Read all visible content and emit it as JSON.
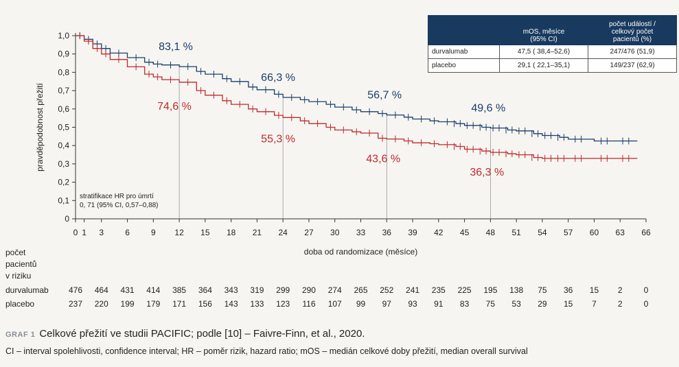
{
  "chart_data": {
    "type": "line",
    "subtype": "kaplan-meier",
    "xlabel": "doba od randomizace (měsíce)",
    "ylabel": "pravděpodobnost přežití",
    "xlim": [
      0,
      66
    ],
    "ylim": [
      0,
      1.0
    ],
    "xticks": [
      0,
      1,
      3,
      6,
      9,
      12,
      15,
      18,
      21,
      24,
      27,
      30,
      33,
      36,
      39,
      42,
      45,
      48,
      51,
      54,
      57,
      60,
      63,
      66
    ],
    "yticks": [
      "0",
      "0,1",
      "0,2",
      "0,3",
      "0,4",
      "0,5",
      "0,6",
      "0,7",
      "0,8",
      "0,9",
      "1,0"
    ],
    "grid": false,
    "colors": {
      "durvalumab": "#1b3d6b",
      "placebo": "#c0282d",
      "reference_line": "#999999"
    },
    "reference_months": [
      12,
      24,
      36,
      48
    ],
    "series": [
      {
        "name": "durvalumab",
        "x": [
          0,
          1,
          2,
          3,
          4,
          6,
          8,
          9,
          10,
          12,
          14,
          15,
          17,
          18,
          20,
          21,
          23,
          24,
          26,
          27,
          29,
          30,
          32,
          33,
          35,
          36,
          38,
          39,
          41,
          42,
          44,
          45,
          47,
          48,
          50,
          51,
          53,
          54,
          56,
          57,
          60,
          63,
          65
        ],
        "y": [
          1.0,
          0.98,
          0.955,
          0.93,
          0.905,
          0.88,
          0.855,
          0.845,
          0.84,
          0.831,
          0.805,
          0.79,
          0.765,
          0.75,
          0.72,
          0.705,
          0.68,
          0.663,
          0.65,
          0.64,
          0.625,
          0.61,
          0.595,
          0.585,
          0.575,
          0.567,
          0.555,
          0.545,
          0.535,
          0.53,
          0.52,
          0.51,
          0.5,
          0.496,
          0.485,
          0.48,
          0.465,
          0.455,
          0.445,
          0.435,
          0.425,
          0.425,
          0.425
        ],
        "annotations": [
          {
            "x": 12,
            "label": "83,1 %"
          },
          {
            "x": 24,
            "label": "66,3 %"
          },
          {
            "x": 36,
            "label": "56,7 %"
          },
          {
            "x": 48,
            "label": "49,6 %"
          }
        ]
      },
      {
        "name": "placebo",
        "x": [
          0,
          1,
          2,
          3,
          4,
          6,
          8,
          9,
          10,
          12,
          14,
          15,
          17,
          18,
          20,
          21,
          23,
          24,
          26,
          27,
          29,
          30,
          32,
          33,
          35,
          36,
          38,
          39,
          41,
          42,
          44,
          45,
          47,
          48,
          50,
          51,
          53,
          54,
          56,
          57,
          60,
          63,
          65
        ],
        "y": [
          1.0,
          0.97,
          0.93,
          0.9,
          0.87,
          0.83,
          0.79,
          0.775,
          0.76,
          0.746,
          0.7,
          0.675,
          0.645,
          0.625,
          0.6,
          0.585,
          0.565,
          0.553,
          0.535,
          0.52,
          0.5,
          0.485,
          0.475,
          0.468,
          0.44,
          0.436,
          0.425,
          0.415,
          0.41,
          0.405,
          0.395,
          0.38,
          0.37,
          0.363,
          0.355,
          0.35,
          0.335,
          0.33,
          0.33,
          0.33,
          0.33,
          0.33,
          0.33
        ],
        "annotations": [
          {
            "x": 12,
            "label": "74,6 %"
          },
          {
            "x": 24,
            "label": "55,3 %"
          },
          {
            "x": 36,
            "label": "43,6 %"
          },
          {
            "x": 48,
            "label": "36,3 %"
          }
        ]
      }
    ],
    "hr_note": [
      "stratifikace HR pro úmrtí",
      "0, 71 (95% CI, 0,57–0,88)"
    ],
    "at_risk": {
      "header": [
        "počet",
        "pacientů",
        "v riziku"
      ],
      "months": [
        0,
        3,
        6,
        9,
        12,
        15,
        18,
        21,
        24,
        27,
        30,
        33,
        36,
        39,
        42,
        45,
        48,
        51,
        54,
        57,
        60,
        63,
        66
      ],
      "rows": [
        {
          "name": "durvalumab",
          "values": [
            "476",
            "464",
            "431",
            "414",
            "385",
            "364",
            "343",
            "319",
            "299",
            "290",
            "274",
            "265",
            "252",
            "241",
            "235",
            "225",
            "195",
            "138",
            "75",
            "36",
            "15",
            "2",
            "0"
          ]
        },
        {
          "name": "placebo",
          "values": [
            "237",
            "220",
            "199",
            "179",
            "171",
            "156",
            "143",
            "133",
            "123",
            "116",
            "107",
            "99",
            "97",
            "93",
            "91",
            "83",
            "75",
            "53",
            "29",
            "15",
            "7",
            "2",
            "0"
          ]
        }
      ]
    }
  },
  "summary_table": {
    "headers": [
      "",
      "mOS, měsíce\n(95% CI)",
      "počet událostí /\ncelkový počet\npacientů (%)"
    ],
    "rows": [
      [
        "durvalumab",
        "47,5 ( 38,4–52,6)",
        "247/476 (51,9)"
      ],
      [
        "placebo",
        "29,1 ( 22,1–35,1)",
        "149/237 (62,9)"
      ]
    ]
  },
  "caption": {
    "label": "GRAF 1",
    "text": "Celkové přežití ve studii PACIFIC; podle [10] – Faivre-Finn, et al., 2020.",
    "note": "CI – interval spolehlivosti, confidence interval; HR – poměr rizik, hazard ratio; mOS – medián celkové doby přežití, median overall survival"
  }
}
